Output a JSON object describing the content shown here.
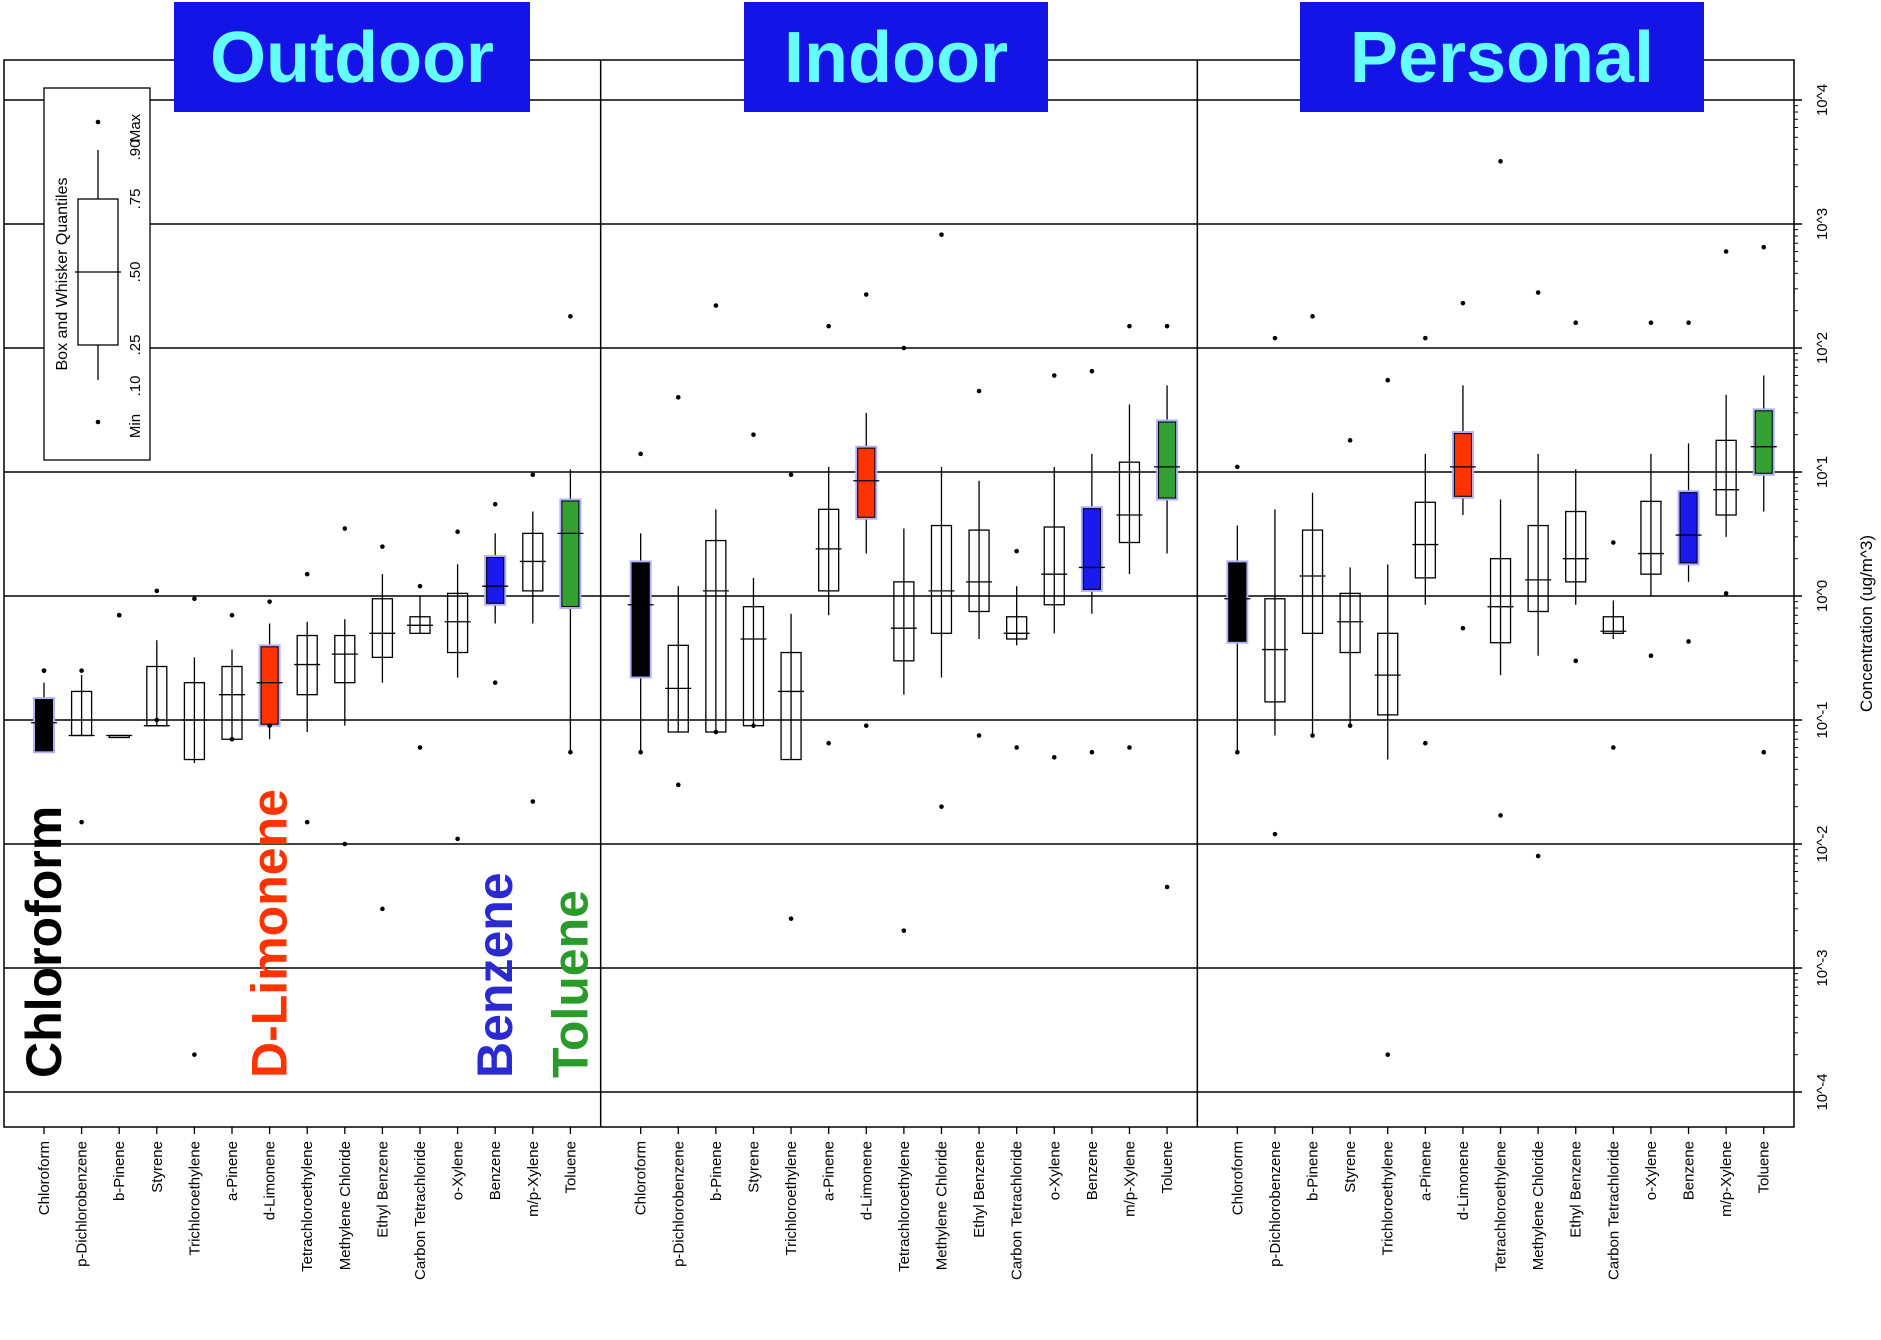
{
  "chart_data": {
    "type": "box",
    "ylabel": "Concentration (ug/m^3)",
    "y_scale": "log10",
    "ylim": [
      5e-05,
      40000
    ],
    "ytick_values": [
      0.0001,
      0.001,
      0.01,
      0.1,
      1,
      10,
      100,
      1000,
      10000
    ],
    "ytick_labels": [
      "10^-4",
      "10^-3",
      "10^-2",
      "10^-1",
      "10^0",
      "10^1",
      "10^2",
      "10^3",
      "10^4"
    ],
    "grid": "horizontal",
    "categories": [
      "Chloroform",
      "p-Dichlorobenzene",
      "b-Pinene",
      "Styrene",
      "Trichloroethylene",
      "a-Pinene",
      "d-Limonene",
      "Tetrachloroethylene",
      "Methylene Chloride",
      "Ethyl Benzene",
      "Carbon Tetrachloride",
      "o-Xylene",
      "Benzene",
      "m/p-Xylene",
      "Toluene"
    ],
    "box_fields": [
      "min",
      "p10",
      "p25",
      "median",
      "p75",
      "p90",
      "max"
    ],
    "highlight_colors": {
      "Chloroform": "#000000",
      "d-Limonene": "#ff3300",
      "Benzene": "#1a1aee",
      "Toluene": "#33a033"
    },
    "legend": {
      "title": "Box and Whisker Quantiles",
      "labels": [
        "Min",
        ".10",
        ".25",
        ".50",
        ".75",
        ".90",
        "Max"
      ],
      "position": "top-left"
    },
    "panels": [
      {
        "title": "Outdoor",
        "boxes": [
          [
            0.25,
            0.055,
            0.055,
            0.095,
            0.15,
            0.2,
            0.25
          ],
          [
            0.015,
            0.075,
            0.075,
            0.075,
            0.17,
            0.23,
            0.25
          ],
          [
            0.7,
            0.075,
            0.075,
            0.075,
            0.075,
            0.075,
            0.7
          ],
          [
            0.1,
            0.09,
            0.09,
            0.09,
            0.27,
            0.44,
            1.1
          ],
          [
            0.0002,
            0.045,
            0.048,
            0.1,
            0.2,
            0.32,
            0.95
          ],
          [
            0.07,
            0.07,
            0.07,
            0.16,
            0.27,
            0.37,
            0.7
          ],
          [
            0.09,
            0.07,
            0.09,
            0.2,
            0.4,
            0.6,
            0.9
          ],
          [
            0.015,
            0.08,
            0.16,
            0.28,
            0.48,
            0.62,
            1.5
          ],
          [
            0.01,
            0.09,
            0.2,
            0.34,
            0.48,
            0.65,
            3.5
          ],
          [
            0.003,
            0.2,
            0.32,
            0.5,
            0.95,
            1.5,
            2.5
          ],
          [
            0.06,
            0.5,
            0.5,
            0.58,
            0.68,
            1.0,
            1.2
          ],
          [
            0.011,
            0.22,
            0.35,
            0.62,
            1.05,
            1.8,
            3.3
          ],
          [
            0.2,
            0.6,
            0.85,
            1.2,
            2.1,
            3.2,
            5.5
          ],
          [
            0.022,
            0.6,
            1.1,
            1.9,
            3.2,
            4.8,
            9.5
          ],
          [
            0.055,
            0.055,
            0.8,
            3.2,
            6.0,
            10.5,
            180
          ]
        ]
      },
      {
        "title": "Indoor",
        "boxes": [
          [
            0.055,
            0.055,
            0.22,
            0.85,
            1.9,
            3.2,
            14
          ],
          [
            0.03,
            0.08,
            0.08,
            0.18,
            0.4,
            1.2,
            40
          ],
          [
            0.08,
            0.08,
            0.08,
            1.1,
            2.8,
            5.0,
            220
          ],
          [
            0.09,
            0.09,
            0.09,
            0.45,
            0.82,
            1.4,
            20
          ],
          [
            0.0025,
            0.048,
            0.048,
            0.17,
            0.35,
            0.72,
            9.5
          ],
          [
            0.065,
            0.7,
            1.1,
            2.4,
            5.0,
            11,
            150
          ],
          [
            0.09,
            2.2,
            4.2,
            8.5,
            16,
            30,
            270
          ],
          [
            0.002,
            0.16,
            0.3,
            0.55,
            1.3,
            3.5,
            100
          ],
          [
            0.02,
            0.22,
            0.5,
            1.1,
            3.7,
            11,
            820
          ],
          [
            0.075,
            0.45,
            0.75,
            1.3,
            3.4,
            8.5,
            45
          ],
          [
            0.06,
            0.4,
            0.45,
            0.5,
            0.68,
            1.2,
            2.3
          ],
          [
            0.05,
            0.5,
            0.85,
            1.5,
            3.6,
            11,
            60
          ],
          [
            0.055,
            0.72,
            1.1,
            1.7,
            5.2,
            14,
            65
          ],
          [
            0.06,
            1.5,
            2.7,
            4.5,
            12,
            35,
            150
          ],
          [
            0.0045,
            2.2,
            6.0,
            11,
            26,
            50,
            150
          ]
        ]
      },
      {
        "title": "Personal",
        "boxes": [
          [
            0.055,
            0.055,
            0.42,
            0.95,
            1.9,
            3.7,
            11
          ],
          [
            0.012,
            0.075,
            0.14,
            0.37,
            0.95,
            5.0,
            120
          ],
          [
            0.075,
            0.075,
            0.5,
            1.45,
            3.4,
            6.8,
            180
          ],
          [
            0.09,
            0.09,
            0.35,
            0.62,
            1.05,
            1.7,
            18
          ],
          [
            0.0002,
            0.048,
            0.11,
            0.23,
            0.5,
            1.8,
            55
          ],
          [
            0.065,
            0.85,
            1.4,
            2.6,
            5.7,
            14,
            120
          ],
          [
            0.55,
            4.5,
            6.2,
            11,
            21,
            50,
            230
          ],
          [
            0.017,
            0.23,
            0.42,
            0.82,
            2.0,
            6.0,
            3200
          ],
          [
            0.008,
            0.33,
            0.75,
            1.35,
            3.7,
            14,
            280
          ],
          [
            0.3,
            0.85,
            1.3,
            2.0,
            4.8,
            10.5,
            160
          ],
          [
            0.06,
            0.45,
            0.5,
            0.52,
            0.68,
            0.92,
            2.7
          ],
          [
            0.33,
            1.0,
            1.5,
            2.2,
            5.8,
            14,
            160
          ],
          [
            0.43,
            1.3,
            1.8,
            3.1,
            7.0,
            17,
            160
          ],
          [
            1.05,
            3.0,
            4.5,
            7.2,
            18,
            42,
            600
          ],
          [
            0.055,
            4.8,
            9.5,
            16,
            32,
            60,
            650
          ]
        ]
      }
    ],
    "annotations": [
      {
        "text": "Chloroform",
        "color": "#000000",
        "category": 0
      },
      {
        "text": "D-Limonene",
        "color": "#ff3300",
        "category": 6
      },
      {
        "text": "Benzene",
        "color": "#2a2ad0",
        "category": 12
      },
      {
        "text": "Toluene",
        "color": "#2a9a2a",
        "category": 14
      }
    ],
    "title_style": {
      "background": "#1414e6",
      "color": "#66ffff"
    }
  }
}
